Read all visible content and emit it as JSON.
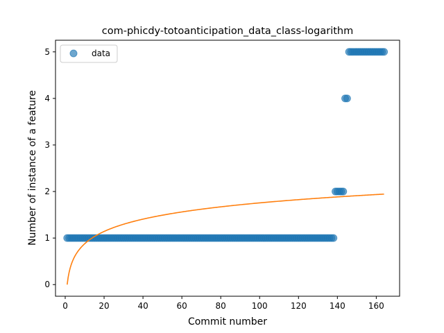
{
  "chart_data": {
    "type": "scatter",
    "title": "com-phicdy-totoanticipation_data_class-logarithm",
    "xlabel": "Commit number",
    "ylabel": "Number of instance of a feature",
    "xlim": [
      -5,
      172
    ],
    "ylim": [
      -0.25,
      5.25
    ],
    "xticks": [
      0,
      20,
      40,
      60,
      80,
      100,
      120,
      140,
      160
    ],
    "yticks": [
      0,
      1,
      2,
      3,
      4,
      5
    ],
    "grid": false,
    "legend": {
      "placement": "top-left",
      "entries": [
        "data"
      ]
    },
    "series": [
      {
        "name": "data",
        "kind": "scatter",
        "color": "#1f77b4",
        "segments": [
          {
            "x_from": 1,
            "x_to": 138,
            "y": 1
          },
          {
            "x_from": 139,
            "x_to": 143,
            "y": 2
          },
          {
            "x_from": 144,
            "x_to": 145,
            "y": 4
          },
          {
            "x_from": 146,
            "x_to": 164,
            "y": 5
          }
        ]
      },
      {
        "kind": "line",
        "color": "#ff7f0e",
        "formula": "0.3812 * ln(x)",
        "x_from": 1,
        "x_to": 164
      }
    ]
  }
}
